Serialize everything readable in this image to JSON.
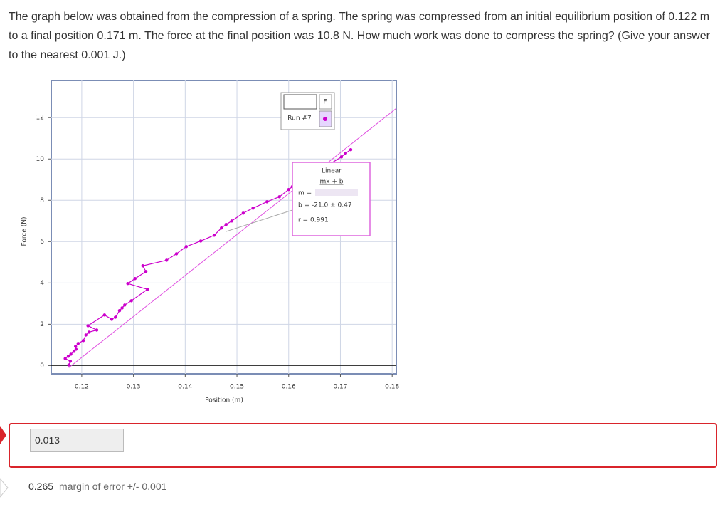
{
  "question": "The graph below was obtained from the compression of a spring. The spring was compressed from an initial equilibrium position of 0.122 m to a final position 0.171 m. The force at the final position was 10.8 N. How much work was done to compress the spring? (Give your answer to the nearest 0.001 J.)",
  "chart_data": {
    "type": "line",
    "x_label": "Position (m)",
    "y_label": "Force (N)",
    "xlim": [
      0.1141,
      0.1808
    ],
    "ylim": [
      -0.4,
      13.8
    ],
    "xticks": [
      0.12,
      0.13,
      0.14,
      0.15,
      0.16,
      0.17,
      0.18
    ],
    "yticks": [
      0,
      2,
      4,
      6,
      8,
      10,
      12
    ],
    "grid": true,
    "legend_header": "F",
    "series": [
      {
        "name": "Run #7",
        "color": "#cc00cc",
        "x": [
          0.1175,
          0.1178,
          0.1168,
          0.1174,
          0.1179,
          0.1185,
          0.1189,
          0.1188,
          0.1193,
          0.1203,
          0.1208,
          0.1214,
          0.1229,
          0.1212,
          0.1244,
          0.1258,
          0.1265,
          0.1273,
          0.1278,
          0.1283,
          0.1296,
          0.1327,
          0.1289,
          0.1303,
          0.1324,
          0.1318,
          0.1364,
          0.1383,
          0.1402,
          0.143,
          0.1456,
          0.147,
          0.1479,
          0.149,
          0.1512,
          0.1531,
          0.1558,
          0.1582,
          0.16,
          0.1607,
          0.1702,
          0.171,
          0.172
        ],
        "values": [
          0.03,
          0.21,
          0.34,
          0.45,
          0.55,
          0.69,
          0.79,
          0.93,
          1.07,
          1.21,
          1.48,
          1.62,
          1.72,
          1.93,
          2.45,
          2.24,
          2.34,
          2.66,
          2.79,
          2.93,
          3.14,
          3.69,
          3.97,
          4.21,
          4.55,
          4.83,
          5.1,
          5.41,
          5.76,
          6.03,
          6.31,
          6.66,
          6.83,
          7.0,
          7.38,
          7.62,
          7.93,
          8.17,
          8.52,
          8.66,
          10.1,
          10.28,
          10.45
        ]
      },
      {
        "name": "Linear",
        "color": "#e050e0",
        "x": [
          0.1175,
          0.1808
        ],
        "values": [
          -0.1,
          12.45
        ]
      }
    ],
    "fit": {
      "formula": "mx + b",
      "m_label": "m =",
      "b_label": "b = -21.0 ± 0.47",
      "r_label": "r = 0.991"
    }
  },
  "answer": "0.013",
  "correct_answer": "0.265",
  "margin_note": "margin of error +/- 0.001"
}
